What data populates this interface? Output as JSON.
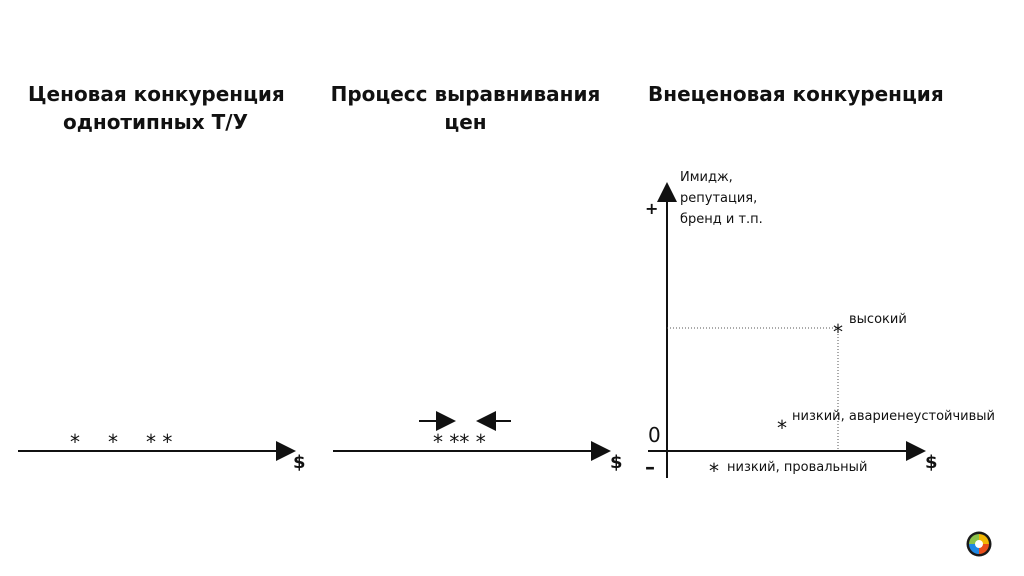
{
  "sections": {
    "left": {
      "title_line1": "Ценовая конкуренция",
      "title_line2": "однотипных  Т/У",
      "axis_symbol": "$",
      "stars": [
        "*",
        "*",
        "* *"
      ]
    },
    "middle": {
      "title_line1": "Процесс выравнивания",
      "title_line2": "цен",
      "axis_symbol": "$",
      "stars": "* ** *"
    },
    "right": {
      "title": "Внеценовая конкуренция",
      "y_axis_label": [
        "Имидж,",
        "репутация,",
        "бренд и т.п."
      ],
      "plus": "+",
      "minus": "–",
      "zero": "0",
      "x_axis_symbol": "$",
      "points": [
        {
          "star": "*",
          "label": "высокий"
        },
        {
          "star": "*",
          "label": "низкий, авариенеустойчивый"
        },
        {
          "star": "*",
          "label": "низкий, провальный"
        }
      ]
    }
  },
  "colors": {
    "text": "#111111",
    "axis": "#111111",
    "dashed": "#555555"
  },
  "icons": {
    "logo": "colorful-sphere-logo-icon"
  }
}
